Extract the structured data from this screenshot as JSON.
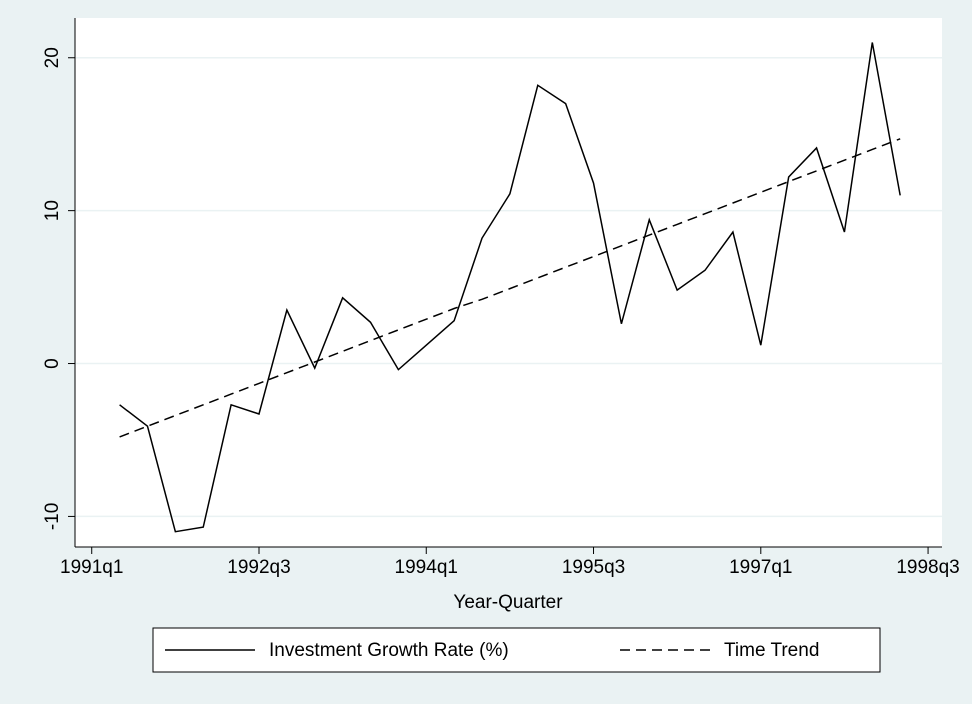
{
  "chart_data": {
    "type": "line",
    "x_label": "Year-Quarter",
    "x": [
      125,
      126,
      127,
      128,
      129,
      130,
      131,
      132,
      133,
      134,
      135,
      136,
      137,
      138,
      139,
      140,
      141,
      142,
      143,
      144,
      145,
      146,
      147,
      148,
      149,
      150,
      151,
      152,
      153
    ],
    "series": [
      {
        "name": "Investment Growth Rate (%)",
        "color": "#000000",
        "dash": "solid",
        "values": [
          -2.7,
          -4.1,
          -11.0,
          -10.7,
          -2.7,
          -3.3,
          3.5,
          -0.3,
          4.3,
          2.7,
          -0.4,
          1.2,
          2.8,
          8.2,
          11.1,
          18.2,
          17.0,
          11.8,
          2.6,
          9.4,
          4.8,
          6.1,
          8.6,
          1.2,
          12.2,
          14.1,
          8.6,
          21.0,
          11.0
        ]
      },
      {
        "name": "Time Trend",
        "color": "#000000",
        "dash": "dashed",
        "values": [
          -4.8,
          -4.1,
          -3.4,
          -2.7,
          -2.0,
          -1.3,
          -0.6,
          0.1,
          0.8,
          1.5,
          2.2,
          2.9,
          3.6,
          4.2,
          4.9,
          5.6,
          6.3,
          7.0,
          7.7,
          8.4,
          9.1,
          9.8,
          10.5,
          11.2,
          11.9,
          12.6,
          13.3,
          14.0,
          14.7
        ]
      }
    ],
    "xlim": [
      123.4,
      154.5
    ],
    "ylim": [
      -12,
      22.6
    ],
    "xticks": [
      {
        "value": 124,
        "label": "1991q1"
      },
      {
        "value": 130,
        "label": "1992q3"
      },
      {
        "value": 136,
        "label": "1994q1"
      },
      {
        "value": 142,
        "label": "1995q3"
      },
      {
        "value": 148,
        "label": "1997q1"
      },
      {
        "value": 154,
        "label": "1998q3"
      }
    ],
    "yticks": [
      -10,
      0,
      10,
      20
    ],
    "grid": true,
    "legend": "bottom"
  }
}
